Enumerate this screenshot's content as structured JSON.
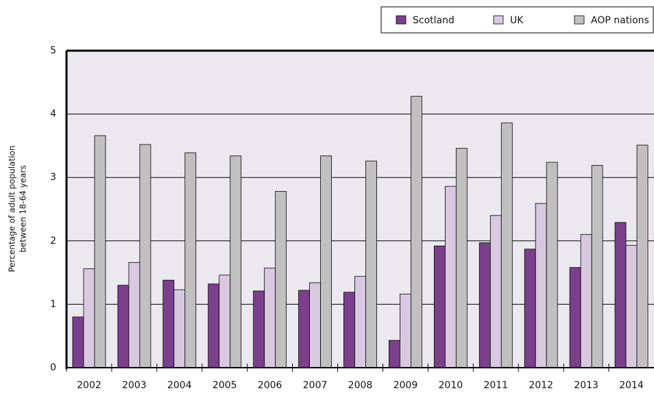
{
  "chart_data": {
    "type": "bar",
    "ylabel": [
      "Percentage of adult population",
      "between 18-64 years"
    ],
    "categories": [
      "2002",
      "2003",
      "2004",
      "2005",
      "2006",
      "2007",
      "2008",
      "2009",
      "2010",
      "2011",
      "2012",
      "2013",
      "2014"
    ],
    "series": [
      {
        "name": "Scotland",
        "color": "#7b3f8c",
        "values": [
          0.8,
          1.3,
          1.38,
          1.32,
          1.21,
          1.22,
          1.19,
          0.43,
          1.92,
          1.97,
          1.87,
          1.58,
          2.29
        ]
      },
      {
        "name": "UK",
        "color": "#d8c8e0",
        "values": [
          1.56,
          1.66,
          1.23,
          1.46,
          1.57,
          1.34,
          1.44,
          1.16,
          2.86,
          2.4,
          2.59,
          2.1,
          1.93
        ]
      },
      {
        "name": "AOP nations",
        "color": "#c0c0c0",
        "values": [
          3.66,
          3.52,
          3.39,
          3.34,
          2.78,
          3.34,
          3.26,
          4.28,
          3.46,
          3.86,
          3.24,
          3.19,
          3.51
        ]
      }
    ],
    "ylim": [
      0,
      5
    ],
    "yticks": [
      0,
      1,
      2,
      3,
      4,
      5
    ],
    "grid": true,
    "legend": "top-right"
  }
}
